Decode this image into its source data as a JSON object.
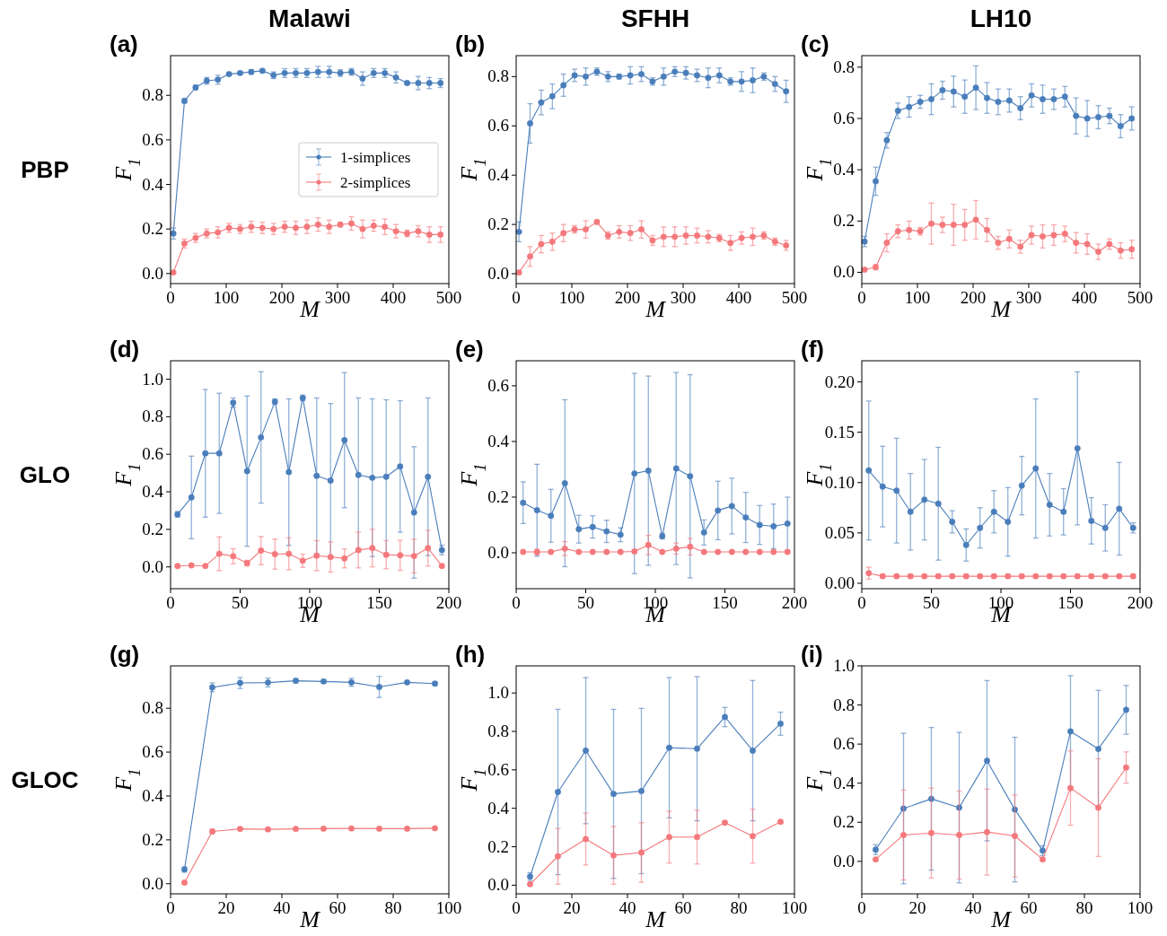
{
  "chart_data": [
    {
      "type": "line",
      "title": "(a)",
      "subtitle": "Malawi",
      "annotations": [
        "PBP"
      ],
      "xlabel": "M",
      "ylabel": "F$_{1}$",
      "marker": "circle",
      "line_style": "solid",
      "legend": "right",
      "x": [
        5,
        25,
        45,
        65,
        85,
        105,
        125,
        145,
        165,
        185,
        205,
        225,
        245,
        265,
        285,
        305,
        325,
        345,
        365,
        385,
        405,
        425,
        445,
        465,
        485
      ],
      "xlim": [
        0,
        500
      ],
      "xticks": [
        0,
        100,
        200,
        300,
        400,
        500
      ],
      "ylim": [
        -0.045,
        0.978
      ],
      "yticks": [
        {
          "value": 0,
          "label": "0.0"
        },
        0.2,
        0.4,
        0.6,
        0.8
      ],
      "series": [
        {
          "name": "1-simplices",
          "color": "#4a7ebb",
          "values": [
            0.18,
            0.775,
            0.835,
            0.865,
            0.87,
            0.895,
            0.9,
            0.905,
            0.91,
            0.89,
            0.9,
            0.9,
            0.9,
            0.905,
            0.905,
            0.9,
            0.905,
            0.875,
            0.9,
            0.9,
            0.88,
            0.855,
            0.855,
            0.855,
            0.855
          ],
          "errors": [
            0.025,
            0.01,
            0.01,
            0.015,
            0.02,
            0.005,
            0.005,
            0.01,
            0.007,
            0.015,
            0.02,
            0.02,
            0.02,
            0.025,
            0.025,
            0.015,
            0.015,
            0.03,
            0.02,
            0.02,
            0.025,
            0.005,
            0.03,
            0.025,
            0.02
          ]
        },
        {
          "name": "2-simplices",
          "color": "#f4787c",
          "values": [
            0.005,
            0.135,
            0.16,
            0.18,
            0.185,
            0.205,
            0.2,
            0.21,
            0.205,
            0.2,
            0.21,
            0.205,
            0.21,
            0.22,
            0.21,
            0.22,
            0.225,
            0.2,
            0.215,
            0.21,
            0.19,
            0.18,
            0.19,
            0.175,
            0.175
          ],
          "errors": [
            null,
            0.02,
            0.02,
            0.02,
            0.025,
            0.02,
            0.02,
            0.025,
            0.025,
            0.025,
            0.025,
            0.03,
            0.03,
            0.03,
            0.03,
            0.01,
            0.03,
            0.04,
            0.025,
            0.035,
            0.03,
            0.015,
            0.025,
            0.035,
            0.035
          ]
        }
      ]
    },
    {
      "type": "line",
      "title": "(b)",
      "subtitle": "SFHH",
      "xlabel": "M",
      "ylabel": "F$_{1}$",
      "marker": "circle",
      "line_style": "solid",
      "x": [
        5,
        25,
        45,
        65,
        85,
        105,
        125,
        145,
        165,
        185,
        205,
        225,
        245,
        265,
        285,
        305,
        325,
        345,
        365,
        385,
        405,
        425,
        445,
        465,
        485
      ],
      "xlim": [
        0,
        500
      ],
      "xticks": [
        0,
        100,
        200,
        300,
        400,
        500
      ],
      "ylim": [
        -0.04,
        0.885
      ],
      "yticks": [
        {
          "value": 0,
          "label": "0.0"
        },
        0.2,
        0.4,
        0.6,
        0.8
      ],
      "series": [
        {
          "color": "#4a7ebb",
          "values": [
            0.17,
            0.61,
            0.695,
            0.72,
            0.765,
            0.805,
            0.8,
            0.82,
            0.8,
            0.8,
            0.805,
            0.81,
            0.78,
            0.8,
            0.82,
            0.815,
            0.805,
            0.795,
            0.805,
            0.78,
            0.78,
            0.785,
            0.8,
            0.77,
            0.74
          ],
          "errors": [
            0.04,
            0.08,
            0.05,
            0.05,
            0.045,
            0.025,
            0.035,
            0.015,
            0.02,
            0.01,
            0.035,
            0.03,
            0.015,
            0.035,
            0.02,
            0.025,
            0.025,
            0.04,
            0.03,
            0.015,
            0.04,
            0.05,
            0.015,
            0.03,
            0.045
          ]
        },
        {
          "color": "#f4787c",
          "values": [
            0.005,
            0.07,
            0.12,
            0.13,
            0.165,
            0.18,
            0.18,
            0.21,
            0.155,
            0.17,
            0.165,
            0.18,
            0.135,
            0.15,
            0.15,
            0.155,
            0.155,
            0.15,
            0.145,
            0.125,
            0.145,
            0.15,
            0.155,
            0.13,
            0.115
          ],
          "errors": [
            null,
            0.04,
            0.035,
            0.035,
            0.035,
            0.015,
            0.035,
            0.008,
            0.015,
            0.025,
            0.03,
            0.035,
            0.02,
            0.04,
            0.04,
            0.035,
            0.03,
            0.025,
            0.015,
            0.03,
            0.025,
            0.035,
            0.015,
            0.015,
            0.02
          ]
        }
      ]
    },
    {
      "type": "line",
      "title": "(c)",
      "subtitle": "LH10",
      "xlabel": "M",
      "ylabel": "F$_{1}$",
      "marker": "circle",
      "line_style": "solid",
      "x": [
        5,
        25,
        45,
        65,
        85,
        105,
        125,
        145,
        165,
        185,
        205,
        225,
        245,
        265,
        285,
        305,
        325,
        345,
        365,
        385,
        405,
        425,
        445,
        465,
        485
      ],
      "xlim": [
        0,
        500
      ],
      "xticks": [
        0,
        100,
        200,
        300,
        400,
        500
      ],
      "ylim": [
        -0.044,
        0.845
      ],
      "yticks": [
        {
          "value": 0,
          "label": "0.0"
        },
        0.2,
        0.4,
        0.6,
        0.8
      ],
      "series": [
        {
          "color": "#4a7ebb",
          "values": [
            0.12,
            0.355,
            0.515,
            0.63,
            0.645,
            0.665,
            0.675,
            0.71,
            0.705,
            0.685,
            0.72,
            0.68,
            0.665,
            0.67,
            0.64,
            0.69,
            0.675,
            0.675,
            0.685,
            0.61,
            0.6,
            0.605,
            0.61,
            0.57,
            0.6
          ],
          "errors": [
            0.02,
            0.055,
            0.03,
            0.03,
            0.04,
            0.025,
            0.06,
            0.035,
            0.06,
            0.065,
            0.085,
            0.06,
            0.05,
            0.045,
            0.045,
            0.045,
            0.055,
            0.04,
            0.04,
            0.07,
            0.07,
            0.045,
            0.03,
            0.045,
            0.045
          ]
        },
        {
          "color": "#f4787c",
          "values": [
            0.01,
            0.02,
            0.115,
            0.16,
            0.165,
            0.16,
            0.19,
            0.185,
            0.185,
            0.185,
            0.205,
            0.165,
            0.115,
            0.13,
            0.1,
            0.145,
            0.14,
            0.145,
            0.15,
            0.115,
            0.11,
            0.08,
            0.11,
            0.085,
            0.09
          ],
          "errors": [
            0.005,
            0.01,
            0.035,
            0.025,
            0.035,
            0.015,
            0.08,
            0.03,
            0.08,
            0.06,
            0.075,
            0.045,
            0.025,
            0.035,
            0.025,
            0.035,
            0.045,
            0.04,
            0.03,
            0.04,
            0.04,
            0.03,
            0.02,
            0.03,
            0.035
          ]
        }
      ]
    },
    {
      "type": "line",
      "title": "(d)",
      "annotations": [
        "GLO"
      ],
      "xlabel": "M",
      "ylabel": "F$_{1}$",
      "marker": "circle",
      "line_style": "solid",
      "x": [
        5,
        15,
        25,
        35,
        45,
        55,
        65,
        75,
        85,
        95,
        105,
        115,
        125,
        135,
        145,
        155,
        165,
        175,
        185,
        195
      ],
      "xlim": [
        0,
        200
      ],
      "xticks": [
        0,
        50,
        100,
        150,
        200
      ],
      "ylim": [
        -0.116,
        1.098
      ],
      "yticks": [
        {
          "value": 0,
          "label": "0.0"
        },
        0.2,
        0.4,
        0.6,
        0.8,
        {
          "value": 1,
          "label": "1.0"
        }
      ],
      "series": [
        {
          "color": "#4a7ebb",
          "values": [
            0.28,
            0.37,
            0.605,
            0.605,
            0.875,
            0.51,
            0.69,
            0.88,
            0.505,
            0.9,
            0.485,
            0.46,
            0.675,
            0.49,
            0.475,
            0.48,
            0.535,
            0.29,
            0.48,
            0.09
          ],
          "errors": [
            0.015,
            0.22,
            0.34,
            0.32,
            0.025,
            0.4,
            0.35,
            0.015,
            0.39,
            0.015,
            0.415,
            0.41,
            0.36,
            0.41,
            0.42,
            0.41,
            0.35,
            0.35,
            0.42,
            0.025
          ]
        },
        {
          "color": "#f4787c",
          "values": [
            0.005,
            0.008,
            0.005,
            0.07,
            0.057,
            0.02,
            0.087,
            0.068,
            0.07,
            0.033,
            0.06,
            0.053,
            0.045,
            0.09,
            0.1,
            0.065,
            0.062,
            0.058,
            0.1,
            0.005
          ],
          "errors": [
            null,
            null,
            null,
            0.09,
            0.04,
            0.015,
            0.075,
            0.08,
            0.085,
            0.035,
            0.08,
            0.08,
            0.05,
            0.095,
            0.1,
            0.075,
            0.08,
            0.09,
            0.095,
            null
          ]
        }
      ]
    },
    {
      "type": "line",
      "title": "(e)",
      "xlabel": "M",
      "ylabel": "F$_{1}$",
      "marker": "circle",
      "line_style": "solid",
      "x": [
        5,
        15,
        25,
        35,
        45,
        55,
        65,
        75,
        85,
        95,
        105,
        115,
        125,
        135,
        145,
        155,
        165,
        175,
        185,
        195
      ],
      "xlim": [
        0,
        200
      ],
      "xticks": [
        0,
        50,
        100,
        150,
        200
      ],
      "ylim": [
        -0.129,
        0.69
      ],
      "yticks": [
        {
          "value": 0,
          "label": "0.0"
        },
        0.2,
        0.4,
        0.6
      ],
      "series": [
        {
          "color": "#4a7ebb",
          "values": [
            0.18,
            0.153,
            0.133,
            0.25,
            0.085,
            0.093,
            0.077,
            0.065,
            0.285,
            0.295,
            0.06,
            0.303,
            0.275,
            0.073,
            0.152,
            0.168,
            0.127,
            0.1,
            0.095,
            0.105
          ],
          "errors": [
            0.075,
            0.165,
            0.095,
            0.3,
            0.05,
            0.04,
            0.04,
            0.025,
            0.36,
            0.34,
            0.01,
            0.345,
            0.365,
            0.045,
            0.105,
            0.1,
            0.09,
            0.07,
            0.08,
            0.095
          ]
        },
        {
          "color": "#f4787c",
          "values": [
            0.003,
            0.003,
            0.003,
            0.015,
            0.003,
            0.003,
            0.003,
            0.003,
            0.005,
            0.028,
            0.003,
            0.015,
            0.022,
            0.003,
            0.003,
            0.003,
            0.003,
            0.003,
            0.003,
            0.003
          ],
          "errors": [
            null,
            0.01,
            null,
            0.025,
            null,
            null,
            null,
            null,
            0.005,
            0.035,
            null,
            0.02,
            0.03,
            null,
            null,
            null,
            null,
            null,
            null,
            null
          ]
        }
      ]
    },
    {
      "type": "line",
      "title": "(f)",
      "xlabel": "M",
      "ylabel": "F$_{1}$",
      "marker": "circle",
      "line_style": "solid",
      "x": [
        5,
        15,
        25,
        35,
        45,
        55,
        65,
        75,
        85,
        95,
        105,
        115,
        125,
        135,
        145,
        155,
        165,
        175,
        185,
        195
      ],
      "xlim": [
        0,
        200
      ],
      "xticks": [
        0,
        50,
        100,
        150,
        200
      ],
      "ylim": [
        -0.0054,
        0.221
      ],
      "yticks": [
        {
          "value": 0,
          "label": "0.00"
        },
        0.05,
        {
          "value": 0.1,
          "label": "0.10"
        },
        0.15,
        {
          "value": 0.2,
          "label": "0.20"
        }
      ],
      "series": [
        {
          "color": "#4a7ebb",
          "values": [
            0.112,
            0.096,
            0.092,
            0.071,
            0.083,
            0.079,
            0.061,
            0.038,
            0.055,
            0.071,
            0.061,
            0.097,
            0.114,
            0.078,
            0.071,
            0.134,
            0.062,
            0.055,
            0.074,
            0.055
          ],
          "errors": [
            0.069,
            0.04,
            0.052,
            0.038,
            0.04,
            0.056,
            0.011,
            0.016,
            0.02,
            0.021,
            0.034,
            0.029,
            0.069,
            0.031,
            0.023,
            0.076,
            0.023,
            0.023,
            0.046,
            0.005
          ]
        },
        {
          "color": "#f4787c",
          "values": [
            0.01,
            0.007,
            0.007,
            0.007,
            0.007,
            0.007,
            0.007,
            0.007,
            0.007,
            0.007,
            0.007,
            0.007,
            0.007,
            0.007,
            0.007,
            0.007,
            0.007,
            0.007,
            0.007,
            0.007
          ],
          "errors": [
            0.006,
            0.002,
            0.002,
            0.002,
            0.002,
            0.002,
            0.002,
            0.002,
            0.002,
            0.002,
            0.002,
            0.002,
            0.002,
            0.002,
            0.002,
            0.002,
            0.002,
            0.002,
            0.002,
            0.002
          ]
        }
      ]
    },
    {
      "type": "line",
      "title": "(g)",
      "annotations": [
        "GLOC"
      ],
      "xlabel": "M",
      "ylabel": "F$_{1}$",
      "marker": "circle",
      "line_style": "solid",
      "x": [
        5,
        15,
        25,
        35,
        45,
        55,
        65,
        75,
        85,
        95
      ],
      "xlim": [
        0,
        100
      ],
      "xticks": [
        0,
        20,
        40,
        60,
        80,
        100
      ],
      "ylim": [
        -0.046,
        0.993
      ],
      "yticks": [
        {
          "value": 0,
          "label": "0.0"
        },
        0.2,
        0.4,
        0.6,
        0.8
      ],
      "series": [
        {
          "color": "#4a7ebb",
          "values": [
            0.065,
            0.895,
            0.915,
            0.917,
            0.925,
            0.922,
            0.918,
            0.897,
            0.918,
            0.912
          ],
          "errors": [
            0.012,
            0.02,
            0.025,
            0.02,
            0.01,
            0.008,
            0.018,
            0.048,
            null,
            0.008
          ]
        },
        {
          "color": "#f4787c",
          "values": [
            0.005,
            0.238,
            0.25,
            0.248,
            0.25,
            0.251,
            0.252,
            0.251,
            0.251,
            0.253
          ],
          "errors": [
            null,
            0.01,
            null,
            null,
            null,
            null,
            null,
            null,
            null,
            null
          ]
        }
      ]
    },
    {
      "type": "line",
      "title": "(h)",
      "xlabel": "M",
      "ylabel": "F$_{1}$",
      "marker": "circle",
      "line_style": "solid",
      "x": [
        5,
        15,
        25,
        35,
        45,
        55,
        65,
        75,
        85,
        95
      ],
      "xlim": [
        0,
        100
      ],
      "xticks": [
        0,
        20,
        40,
        60,
        80,
        100
      ],
      "ylim": [
        -0.045,
        1.141
      ],
      "yticks": [
        {
          "value": 0,
          "label": "0.0"
        },
        0.2,
        0.4,
        0.6,
        0.8,
        {
          "value": 1,
          "label": "1.0"
        }
      ],
      "series": [
        {
          "color": "#4a7ebb",
          "values": [
            0.045,
            0.485,
            0.7,
            0.475,
            0.49,
            0.715,
            0.71,
            0.875,
            0.7,
            0.84
          ],
          "errors": [
            0.02,
            0.43,
            0.38,
            0.44,
            0.43,
            0.365,
            0.375,
            0.05,
            0.365,
            0.06
          ]
        },
        {
          "color": "#f4787c",
          "values": [
            0.005,
            0.15,
            0.24,
            0.155,
            0.17,
            0.25,
            0.25,
            0.325,
            0.255,
            0.33
          ],
          "errors": [
            null,
            0.145,
            0.135,
            0.15,
            0.155,
            0.135,
            0.14,
            0.008,
            0.14,
            0.006
          ]
        }
      ]
    },
    {
      "type": "line",
      "title": "(i)",
      "xlabel": "M",
      "ylabel": "F$_{1}$",
      "marker": "circle",
      "line_style": "solid",
      "x": [
        5,
        15,
        25,
        35,
        45,
        55,
        65,
        75,
        85,
        95
      ],
      "xlim": [
        0,
        100
      ],
      "xticks": [
        0,
        20,
        40,
        60,
        80,
        100
      ],
      "ylim": [
        -0.166,
        1.0
      ],
      "yticks": [
        {
          "value": 0,
          "label": "0.0"
        },
        0.2,
        0.4,
        0.6,
        0.8,
        {
          "value": 1,
          "label": "1.0"
        }
      ],
      "series": [
        {
          "color": "#4a7ebb",
          "values": [
            0.06,
            0.27,
            0.32,
            0.275,
            0.515,
            0.265,
            0.055,
            0.665,
            0.575,
            0.775
          ],
          "errors": [
            0.025,
            0.385,
            0.365,
            0.385,
            0.41,
            0.37,
            0.025,
            0.285,
            0.3,
            0.125
          ]
        },
        {
          "color": "#f4787c",
          "values": [
            0.01,
            0.135,
            0.145,
            0.135,
            0.15,
            0.13,
            0.01,
            0.375,
            0.275,
            0.48
          ],
          "errors": [
            null,
            0.23,
            0.23,
            0.225,
            0.22,
            0.21,
            null,
            0.19,
            0.25,
            0.08
          ]
        }
      ]
    }
  ]
}
